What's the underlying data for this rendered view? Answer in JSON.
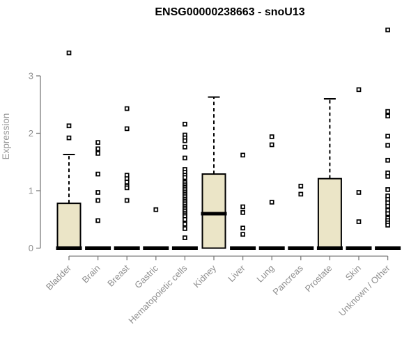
{
  "chart_data": {
    "type": "boxplot",
    "title": "ENSG00000238663 - snoU13",
    "ylabel": "Expression",
    "xlabel": "",
    "ylim": [
      0,
      3.9
    ],
    "yticks": [
      0,
      1,
      2,
      3
    ],
    "grid": false,
    "legend": "none",
    "x_label_rotation": -45,
    "categories": [
      "Bladder",
      "Brain",
      "Breast",
      "Gastric",
      "Hematopoietic cells",
      "Kidney",
      "Liver",
      "Lung",
      "Pancreas",
      "Prostate",
      "Skin",
      "Unknown / Other"
    ],
    "series": [
      {
        "category": "Bladder",
        "q1": 0,
        "median": 0,
        "q3": 0.78,
        "whisker_low": 0,
        "whisker_high": 1.63,
        "outliers": [
          3.4,
          2.13,
          1.92
        ]
      },
      {
        "category": "Brain",
        "q1": 0,
        "median": 0,
        "q3": 0,
        "whisker_low": 0,
        "whisker_high": 0,
        "outliers": [
          1.84,
          1.73,
          1.65,
          1.29,
          0.97,
          0.83,
          0.48
        ]
      },
      {
        "category": "Breast",
        "q1": 0,
        "median": 0,
        "q3": 0,
        "whisker_low": 0,
        "whisker_high": 0,
        "outliers": [
          2.43,
          2.08,
          1.27,
          1.21,
          1.15,
          1.08,
          1.05,
          0.83
        ]
      },
      {
        "category": "Gastric",
        "q1": 0,
        "median": 0,
        "q3": 0,
        "whisker_low": 0,
        "whisker_high": 0,
        "outliers": [
          0.67
        ]
      },
      {
        "category": "Hematopoietic cells",
        "q1": 0,
        "median": 0,
        "q3": 0,
        "whisker_low": 0,
        "whisker_high": 0,
        "outliers": [
          2.16,
          1.97,
          1.92,
          1.87,
          1.76,
          1.57,
          1.37,
          1.32,
          1.27,
          1.23,
          1.15,
          1.12,
          1.09,
          1.06,
          1.03,
          1.0,
          0.97,
          0.94,
          0.91,
          0.88,
          0.85,
          0.82,
          0.79,
          0.76,
          0.73,
          0.7,
          0.67,
          0.64,
          0.61,
          0.58,
          0.55,
          0.5,
          0.42,
          0.34,
          0.18
        ]
      },
      {
        "category": "Kidney",
        "q1": 0,
        "median": 0.6,
        "q3": 1.29,
        "whisker_low": 0,
        "whisker_high": 2.63,
        "outliers": []
      },
      {
        "category": "Liver",
        "q1": 0,
        "median": 0,
        "q3": 0,
        "whisker_low": 0,
        "whisker_high": 0,
        "outliers": [
          1.62,
          0.72,
          0.62,
          0.35,
          0.24
        ]
      },
      {
        "category": "Lung",
        "q1": 0,
        "median": 0,
        "q3": 0,
        "whisker_low": 0,
        "whisker_high": 0,
        "outliers": [
          1.94,
          1.8,
          0.8
        ]
      },
      {
        "category": "Pancreas",
        "q1": 0,
        "median": 0,
        "q3": 0,
        "whisker_low": 0,
        "whisker_high": 0,
        "outliers": [
          1.08,
          0.94
        ]
      },
      {
        "category": "Prostate",
        "q1": 0,
        "median": 0,
        "q3": 1.21,
        "whisker_low": 0,
        "whisker_high": 2.6,
        "outliers": []
      },
      {
        "category": "Skin",
        "q1": 0,
        "median": 0,
        "q3": 0,
        "whisker_low": 0,
        "whisker_high": 0,
        "outliers": [
          2.76,
          0.97,
          0.46
        ]
      },
      {
        "category": "Unknown / Other",
        "q1": 0,
        "median": 0,
        "q3": 0,
        "whisker_low": 0,
        "whisker_high": 0,
        "outliers": [
          3.8,
          2.38,
          2.3,
          1.95,
          1.79,
          1.53,
          1.31,
          1.25,
          1.02,
          0.91,
          0.85,
          0.79,
          0.73,
          0.66,
          0.6,
          0.52,
          0.48,
          0.44,
          0.4
        ]
      }
    ],
    "colors": {
      "box_fill": "#ebe5c7",
      "box_border": "#000000",
      "median": "#000000",
      "axis": "#7d7d7d",
      "tick_text": "#8e8e8e",
      "title_text": "#000000",
      "background": "#ffffff"
    }
  }
}
